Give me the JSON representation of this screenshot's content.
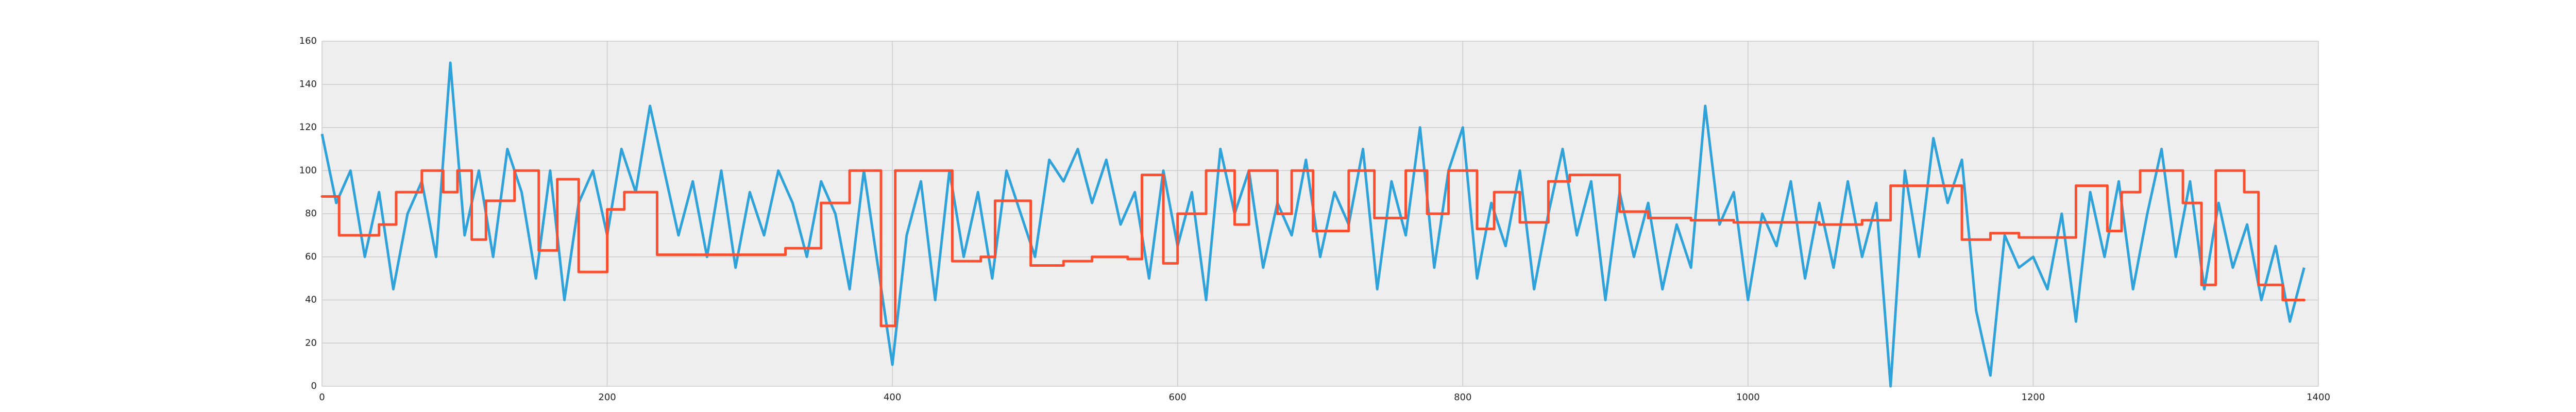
{
  "chart_data": {
    "type": "line",
    "xlim": [
      0,
      1400
    ],
    "xticks": [
      0,
      200,
      400,
      600,
      800,
      1000,
      1200,
      1400
    ],
    "ylim": [
      0,
      160
    ],
    "yticks": [
      0,
      20,
      40,
      60,
      80,
      100,
      120,
      140,
      160
    ],
    "grid": true,
    "background": "#eeeeee",
    "series": [
      {
        "color": "#30a2da",
        "x": [
          0,
          10,
          20,
          30,
          40,
          50,
          60,
          70,
          80,
          90,
          100,
          110,
          120,
          130,
          140,
          150,
          160,
          170,
          180,
          190,
          200,
          210,
          220,
          230,
          240,
          250,
          260,
          270,
          280,
          290,
          300,
          310,
          320,
          330,
          340,
          350,
          360,
          370,
          380,
          390,
          400,
          410,
          420,
          430,
          440,
          450,
          460,
          470,
          480,
          490,
          500,
          510,
          520,
          530,
          540,
          550,
          560,
          570,
          580,
          590,
          600,
          610,
          620,
          630,
          640,
          650,
          660,
          670,
          680,
          690,
          700,
          710,
          720,
          730,
          740,
          750,
          760,
          770,
          780,
          790,
          800,
          810,
          820,
          830,
          840,
          850,
          860,
          870,
          880,
          890,
          900,
          910,
          920,
          930,
          940,
          950,
          960,
          970,
          980,
          990,
          1000,
          1010,
          1020,
          1030,
          1040,
          1050,
          1060,
          1070,
          1080,
          1090,
          1100,
          1110,
          1120,
          1130,
          1140,
          1150,
          1160,
          1170,
          1180,
          1190,
          1200,
          1210,
          1220,
          1230,
          1240,
          1250,
          1260,
          1270,
          1280,
          1290,
          1300,
          1310,
          1320,
          1330,
          1340,
          1350,
          1360,
          1370,
          1380,
          1390
        ],
        "values": [
          117,
          85,
          100,
          60,
          90,
          45,
          80,
          95,
          60,
          150,
          70,
          100,
          60,
          110,
          90,
          50,
          100,
          40,
          85,
          100,
          70,
          110,
          90,
          130,
          100,
          70,
          95,
          60,
          100,
          55,
          90,
          70,
          100,
          85,
          60,
          95,
          80,
          45,
          100,
          55,
          10,
          70,
          95,
          40,
          100,
          60,
          90,
          50,
          100,
          80,
          60,
          105,
          95,
          110,
          85,
          105,
          75,
          90,
          50,
          100,
          65,
          90,
          40,
          110,
          80,
          100,
          55,
          85,
          70,
          105,
          60,
          90,
          75,
          110,
          45,
          95,
          70,
          120,
          55,
          100,
          120,
          50,
          85,
          65,
          100,
          45,
          80,
          110,
          70,
          95,
          40,
          90,
          60,
          85,
          45,
          75,
          55,
          130,
          75,
          90,
          40,
          80,
          65,
          95,
          50,
          85,
          55,
          95,
          60,
          85,
          0,
          100,
          60,
          115,
          85,
          105,
          35,
          5,
          70,
          55,
          60,
          45,
          80,
          30,
          90,
          60,
          95,
          45,
          80,
          110,
          60,
          95,
          45,
          85,
          55,
          75,
          40,
          65,
          30,
          55
        ]
      },
      {
        "color": "#fc4f30",
        "step": "post",
        "x": [
          0,
          12,
          40,
          52,
          70,
          85,
          95,
          105,
          115,
          135,
          152,
          165,
          180,
          200,
          212,
          235,
          260,
          325,
          350,
          370,
          392,
          402,
          442,
          462,
          472,
          497,
          520,
          540,
          565,
          575,
          590,
          600,
          620,
          640,
          650,
          670,
          680,
          695,
          720,
          738,
          760,
          775,
          790,
          810,
          822,
          840,
          860,
          875,
          910,
          930,
          960,
          990,
          1050,
          1080,
          1100,
          1150,
          1170,
          1190,
          1215,
          1230,
          1252,
          1262,
          1275,
          1305,
          1318,
          1328,
          1348,
          1358,
          1375,
          1390
        ],
        "values": [
          88,
          70,
          75,
          90,
          100,
          90,
          100,
          68,
          86,
          100,
          63,
          96,
          53,
          82,
          90,
          61,
          61,
          64,
          85,
          100,
          28,
          100,
          58,
          60,
          86,
          56,
          58,
          60,
          59,
          98,
          57,
          80,
          100,
          75,
          100,
          80,
          100,
          72,
          100,
          78,
          100,
          80,
          100,
          73,
          90,
          76,
          95,
          98,
          81,
          78,
          77,
          76,
          75,
          77,
          93,
          68,
          71,
          69,
          69,
          93,
          72,
          90,
          100,
          85,
          47,
          100,
          90,
          47,
          40,
          40
        ]
      }
    ]
  }
}
